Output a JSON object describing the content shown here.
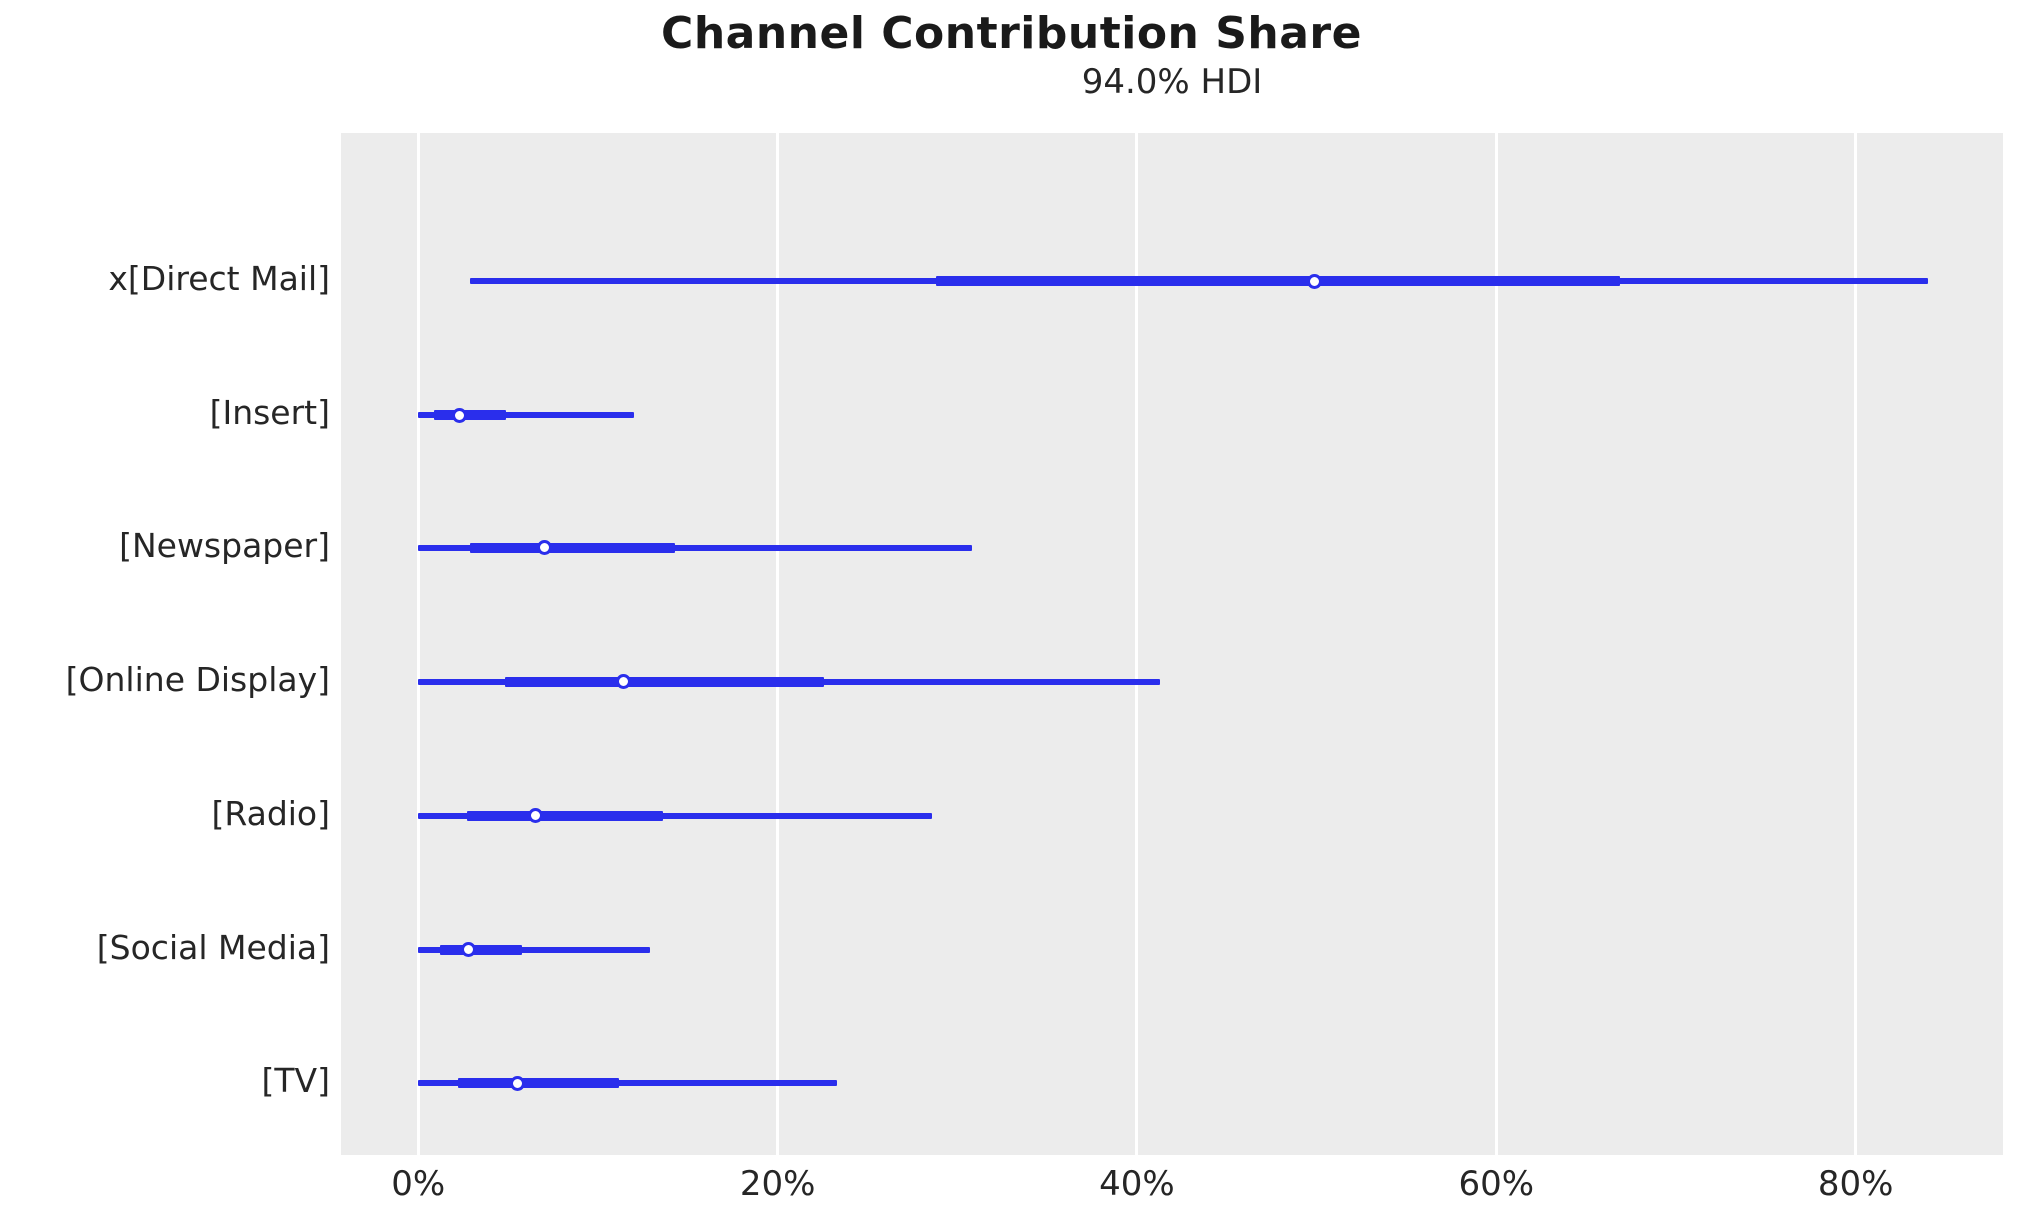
{
  "chart_data": {
    "type": "forest",
    "title": "Channel Contribution Share",
    "subtitle": "94.0% HDI",
    "hdi_probability": "94.0%",
    "xlabel": "",
    "ylabel": "",
    "xlim": [
      -4.3,
      88.2
    ],
    "x_ticks": [
      0,
      20,
      40,
      60,
      80
    ],
    "x_tick_labels": [
      "0%",
      "20%",
      "40%",
      "60%",
      "80%"
    ],
    "grid": "vertical-white-on-gray",
    "legend": "none",
    "rows": [
      {
        "label": "x[Direct Mail]",
        "hdi_low": 2.9,
        "hdi_high": 84.0,
        "quartile_low": 28.8,
        "quartile_high": 66.9,
        "median": 49.9
      },
      {
        "label": "[Insert]",
        "hdi_low": 0.0,
        "hdi_high": 12.0,
        "quartile_low": 0.9,
        "quartile_high": 4.9,
        "median": 2.3
      },
      {
        "label": "[Newspaper]",
        "hdi_low": 0.0,
        "hdi_high": 30.8,
        "quartile_low": 2.9,
        "quartile_high": 14.3,
        "median": 7.0
      },
      {
        "label": "[Online Display]",
        "hdi_low": 0.0,
        "hdi_high": 41.3,
        "quartile_low": 4.8,
        "quartile_high": 22.6,
        "median": 11.4
      },
      {
        "label": "[Radio]",
        "hdi_low": 0.0,
        "hdi_high": 28.6,
        "quartile_low": 2.7,
        "quartile_high": 13.6,
        "median": 6.5
      },
      {
        "label": "[Social Media]",
        "hdi_low": 0.0,
        "hdi_high": 12.9,
        "quartile_low": 1.2,
        "quartile_high": 5.8,
        "median": 2.8
      },
      {
        "label": "[TV]",
        "hdi_low": 0.0,
        "hdi_high": 23.3,
        "quartile_low": 2.2,
        "quartile_high": 11.2,
        "median": 5.5
      }
    ],
    "colors": {
      "line": "#2a2eec",
      "marker_fill": "#ffffff",
      "plot_background": "#ececec",
      "gridline": "#ffffff",
      "text": "#262626",
      "title": "#1a1a1a"
    }
  }
}
